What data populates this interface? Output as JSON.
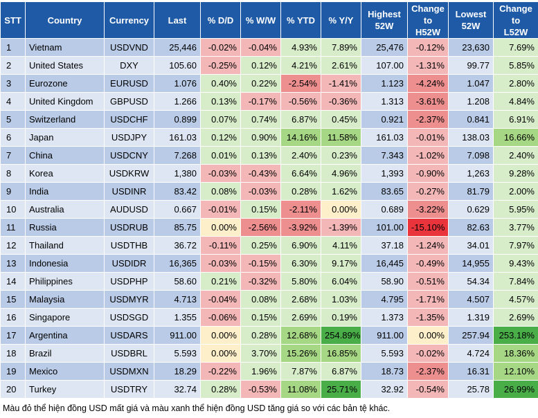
{
  "headers": [
    "STT",
    "Country",
    "Currency",
    "Last",
    "% D/D",
    "% W/W",
    "% YTD",
    "% Y/Y",
    "Highest\n52W",
    "Change\nto\nH52W",
    "Lowest\n52W",
    "Change\nto\nL52W"
  ],
  "rows": [
    {
      "stt": "1",
      "country": "Vietnam",
      "currency": "USDVND",
      "last": "25,446",
      "dd": "-0.02%",
      "ww": "-0.04%",
      "ytd": "4.93%",
      "yy": "7.89%",
      "high": "25,476",
      "ch_high": "-0.12%",
      "low": "23,630",
      "ch_low": "7.69%"
    },
    {
      "stt": "2",
      "country": "United States",
      "currency": "DXY",
      "last": "105.60",
      "dd": "-0.25%",
      "ww": "0.12%",
      "ytd": "4.21%",
      "yy": "2.61%",
      "high": "107.00",
      "ch_high": "-1.31%",
      "low": "99.77",
      "ch_low": "5.85%"
    },
    {
      "stt": "3",
      "country": "Eurozone",
      "currency": "EURUSD",
      "last": "1.076",
      "dd": "0.40%",
      "ww": "0.22%",
      "ytd": "-2.54%",
      "yy": "-1.41%",
      "high": "1.123",
      "ch_high": "-4.24%",
      "low": "1.047",
      "ch_low": "2.80%"
    },
    {
      "stt": "4",
      "country": "United Kingdom",
      "currency": "GBPUSD",
      "last": "1.266",
      "dd": "0.13%",
      "ww": "-0.17%",
      "ytd": "-0.56%",
      "yy": "-0.36%",
      "high": "1.313",
      "ch_high": "-3.61%",
      "low": "1.208",
      "ch_low": "4.84%"
    },
    {
      "stt": "5",
      "country": "Switzerland",
      "currency": "USDCHF",
      "last": "0.899",
      "dd": "0.07%",
      "ww": "0.74%",
      "ytd": "6.87%",
      "yy": "0.45%",
      "high": "0.921",
      "ch_high": "-2.37%",
      "low": "0.841",
      "ch_low": "6.91%"
    },
    {
      "stt": "6",
      "country": "Japan",
      "currency": "USDJPY",
      "last": "161.03",
      "dd": "0.12%",
      "ww": "0.90%",
      "ytd": "14.16%",
      "yy": "11.58%",
      "high": "161.03",
      "ch_high": "-0.01%",
      "low": "138.03",
      "ch_low": "16.66%"
    },
    {
      "stt": "7",
      "country": "China",
      "currency": "USDCNY",
      "last": "7.268",
      "dd": "0.01%",
      "ww": "0.13%",
      "ytd": "2.40%",
      "yy": "0.23%",
      "high": "7.343",
      "ch_high": "-1.02%",
      "low": "7.098",
      "ch_low": "2.40%"
    },
    {
      "stt": "8",
      "country": "Korea",
      "currency": "USDKRW",
      "last": "1,380",
      "dd": "-0.03%",
      "ww": "-0.43%",
      "ytd": "6.64%",
      "yy": "4.96%",
      "high": "1,393",
      "ch_high": "-0.90%",
      "low": "1,263",
      "ch_low": "9.28%"
    },
    {
      "stt": "9",
      "country": "India",
      "currency": "USDINR",
      "last": "83.42",
      "dd": "0.08%",
      "ww": "-0.03%",
      "ytd": "0.28%",
      "yy": "1.62%",
      "high": "83.65",
      "ch_high": "-0.27%",
      "low": "81.79",
      "ch_low": "2.00%"
    },
    {
      "stt": "10",
      "country": "Australia",
      "currency": "AUDUSD",
      "last": "0.667",
      "dd": "-0.01%",
      "ww": "0.15%",
      "ytd": "-2.11%",
      "yy": "0.00%",
      "high": "0.689",
      "ch_high": "-3.22%",
      "low": "0.629",
      "ch_low": "5.95%"
    },
    {
      "stt": "11",
      "country": "Russia",
      "currency": "USDRUB",
      "last": "85.75",
      "dd": "0.00%",
      "ww": "-2.56%",
      "ytd": "-3.92%",
      "yy": "-1.39%",
      "high": "101.00",
      "ch_high": "-15.10%",
      "low": "82.63",
      "ch_low": "3.77%"
    },
    {
      "stt": "12",
      "country": "Thailand",
      "currency": "USDTHB",
      "last": "36.72",
      "dd": "-0.11%",
      "ww": "0.25%",
      "ytd": "6.90%",
      "yy": "4.11%",
      "high": "37.18",
      "ch_high": "-1.24%",
      "low": "34.01",
      "ch_low": "7.97%"
    },
    {
      "stt": "13",
      "country": "Indonesia",
      "currency": "USDIDR",
      "last": "16,365",
      "dd": "-0.03%",
      "ww": "-0.15%",
      "ytd": "6.30%",
      "yy": "9.17%",
      "high": "16,445",
      "ch_high": "-0.49%",
      "low": "14,955",
      "ch_low": "9.43%"
    },
    {
      "stt": "14",
      "country": "Philippines",
      "currency": "USDPHP",
      "last": "58.60",
      "dd": "0.21%",
      "ww": "-0.32%",
      "ytd": "5.80%",
      "yy": "6.04%",
      "high": "58.90",
      "ch_high": "-0.51%",
      "low": "54.34",
      "ch_low": "7.84%"
    },
    {
      "stt": "15",
      "country": "Malaysia",
      "currency": "USDMYR",
      "last": "4.713",
      "dd": "-0.04%",
      "ww": "0.08%",
      "ytd": "2.68%",
      "yy": "1.03%",
      "high": "4.795",
      "ch_high": "-1.71%",
      "low": "4.507",
      "ch_low": "4.57%"
    },
    {
      "stt": "16",
      "country": "Singapore",
      "currency": "USDSGD",
      "last": "1.355",
      "dd": "-0.06%",
      "ww": "0.15%",
      "ytd": "2.69%",
      "yy": "0.19%",
      "high": "1.373",
      "ch_high": "-1.35%",
      "low": "1.319",
      "ch_low": "2.69%"
    },
    {
      "stt": "17",
      "country": "Argentina",
      "currency": "USDARS",
      "last": "911.00",
      "dd": "0.00%",
      "ww": "0.28%",
      "ytd": "12.68%",
      "yy": "254.89%",
      "high": "911.00",
      "ch_high": "0.00%",
      "low": "257.94",
      "ch_low": "253.18%"
    },
    {
      "stt": "18",
      "country": "Brazil",
      "currency": "USDBRL",
      "last": "5.593",
      "dd": "0.00%",
      "ww": "3.70%",
      "ytd": "15.26%",
      "yy": "16.85%",
      "high": "5.593",
      "ch_high": "-0.02%",
      "low": "4.724",
      "ch_low": "18.36%"
    },
    {
      "stt": "19",
      "country": "Mexico",
      "currency": "USDMXN",
      "last": "18.29",
      "dd": "-0.22%",
      "ww": "1.96%",
      "ytd": "7.87%",
      "yy": "6.87%",
      "high": "18.73",
      "ch_high": "-2.37%",
      "low": "16.31",
      "ch_low": "12.10%"
    },
    {
      "stt": "20",
      "country": "Turkey",
      "currency": "USDTRY",
      "last": "32.74",
      "dd": "0.28%",
      "ww": "-0.53%",
      "ytd": "11.08%",
      "yy": "25.71%",
      "high": "32.92",
      "ch_high": "-0.54%",
      "low": "25.78",
      "ch_low": "26.99%"
    }
  ],
  "footnote": "Màu đỏ thể hiện đồng USD mất giá và màu xanh thể hiện đồng USD tăng giá so với các bản tệ khác."
}
